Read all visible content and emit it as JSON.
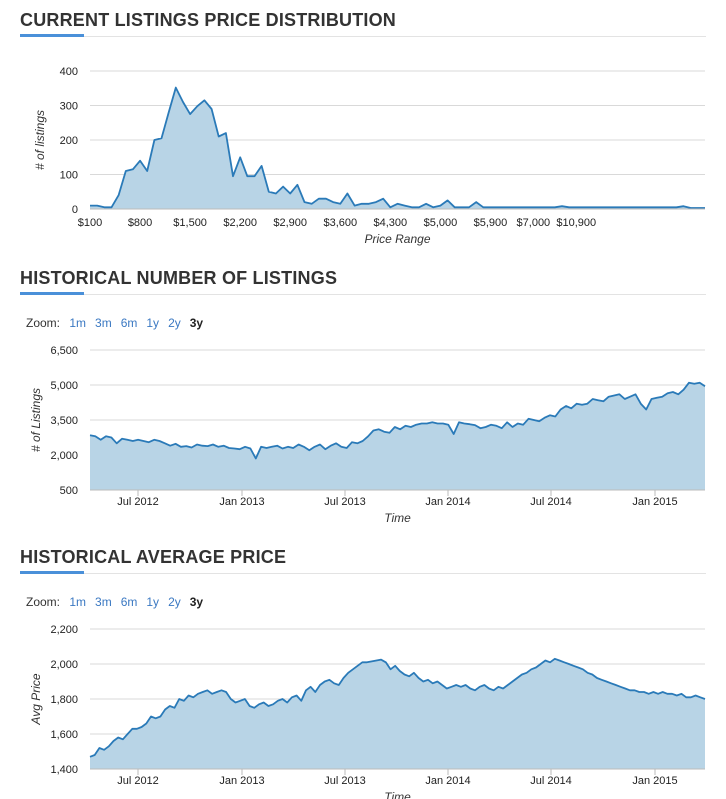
{
  "price_section": {
    "title": "CURRENT LISTINGS PRICE DISTRIBUTION"
  },
  "listings_section": {
    "title": "HISTORICAL NUMBER OF LISTINGS",
    "zoom_label": "Zoom:",
    "zoom_options": [
      "1m",
      "3m",
      "6m",
      "1y",
      "2y",
      "3y"
    ],
    "zoom_active": "3y"
  },
  "avgprice_section": {
    "title": "HISTORICAL AVERAGE PRICE",
    "zoom_label": "Zoom:",
    "zoom_options": [
      "1m",
      "3m",
      "6m",
      "1y",
      "2y",
      "3y"
    ],
    "zoom_active": "3y"
  },
  "colors": {
    "line": "#2a7ab8",
    "fill": "#b8d4e6",
    "accent": "#4a90d9",
    "grid": "#d9d9d9"
  },
  "chart_data": [
    {
      "type": "area",
      "title": "",
      "xlabel": "Price Range",
      "ylabel": "# of listings",
      "ylim": [
        0,
        400
      ],
      "yticks": [
        "0",
        "100",
        "200",
        "300",
        "400"
      ],
      "xtick_labels": [
        "$100",
        "$800",
        "$1,500",
        "$2,200",
        "$2,900",
        "$3,600",
        "$4,300",
        "$5,000",
        "$5,900",
        "$7,000",
        "$10,900"
      ],
      "xtick_index": [
        0,
        7,
        14,
        21,
        28,
        35,
        42,
        49,
        56,
        62,
        68
      ],
      "values": [
        10,
        10,
        5,
        5,
        40,
        110,
        115,
        140,
        110,
        200,
        205,
        280,
        352,
        310,
        275,
        298,
        315,
        290,
        210,
        220,
        95,
        150,
        95,
        95,
        125,
        50,
        45,
        65,
        45,
        70,
        20,
        15,
        30,
        30,
        20,
        15,
        45,
        10,
        15,
        15,
        20,
        30,
        5,
        15,
        10,
        5,
        5,
        15,
        5,
        10,
        25,
        5,
        5,
        5,
        20,
        5,
        5,
        5,
        5,
        5,
        5,
        5,
        5,
        5,
        5,
        5,
        8,
        5,
        5,
        5,
        5,
        5,
        5,
        5,
        5,
        5,
        5,
        5,
        5,
        5,
        5,
        5,
        5,
        8,
        3,
        3,
        3
      ],
      "grid": true
    },
    {
      "type": "area",
      "title": "",
      "xlabel": "Time",
      "ylabel": "# of Listings",
      "ylim": [
        500,
        6500
      ],
      "yticks": [
        "500",
        "2,000",
        "3,500",
        "5,000",
        "6,500"
      ],
      "xtick_labels": [
        "Jul 2012",
        "Jan 2013",
        "Jul 2013",
        "Jan 2014",
        "Jul 2014",
        "Jan 2015"
      ],
      "values": [
        2850,
        2800,
        2650,
        2800,
        2750,
        2500,
        2700,
        2650,
        2600,
        2650,
        2600,
        2550,
        2650,
        2600,
        2500,
        2400,
        2480,
        2350,
        2380,
        2320,
        2450,
        2400,
        2380,
        2450,
        2350,
        2400,
        2300,
        2280,
        2250,
        2350,
        2280,
        1850,
        2350,
        2300,
        2350,
        2400,
        2280,
        2350,
        2300,
        2450,
        2350,
        2200,
        2350,
        2450,
        2250,
        2400,
        2500,
        2350,
        2300,
        2550,
        2500,
        2600,
        2800,
        3050,
        3100,
        3000,
        2950,
        3200,
        3100,
        3250,
        3200,
        3300,
        3350,
        3350,
        3400,
        3350,
        3350,
        3300,
        2900,
        3400,
        3350,
        3320,
        3280,
        3150,
        3200,
        3300,
        3250,
        3150,
        3400,
        3200,
        3350,
        3300,
        3550,
        3500,
        3450,
        3600,
        3700,
        3650,
        3950,
        4100,
        4000,
        4200,
        4150,
        4200,
        4400,
        4350,
        4300,
        4500,
        4550,
        4600,
        4400,
        4500,
        4600,
        4200,
        3950,
        4400,
        4450,
        4500,
        4650,
        4700,
        4600,
        4800,
        5100,
        5050,
        5100,
        4950
      ],
      "grid": true
    },
    {
      "type": "area",
      "title": "",
      "xlabel": "Time",
      "ylabel": "Avg Price",
      "ylim": [
        1400,
        2200
      ],
      "yticks": [
        "1,400",
        "1,600",
        "1,800",
        "2,000",
        "2,200"
      ],
      "xtick_labels": [
        "Jul 2012",
        "Jan 2013",
        "Jul 2013",
        "Jan 2014",
        "Jul 2014",
        "Jan 2015"
      ],
      "values": [
        1470,
        1480,
        1520,
        1510,
        1530,
        1560,
        1580,
        1570,
        1600,
        1630,
        1630,
        1640,
        1660,
        1700,
        1690,
        1700,
        1740,
        1760,
        1750,
        1800,
        1790,
        1820,
        1810,
        1830,
        1840,
        1850,
        1830,
        1840,
        1850,
        1840,
        1800,
        1780,
        1790,
        1800,
        1760,
        1750,
        1770,
        1780,
        1760,
        1770,
        1790,
        1800,
        1780,
        1810,
        1820,
        1790,
        1850,
        1870,
        1840,
        1880,
        1900,
        1910,
        1890,
        1880,
        1920,
        1950,
        1970,
        1990,
        2010,
        2010,
        2015,
        2020,
        2025,
        2010,
        1970,
        1990,
        1960,
        1940,
        1930,
        1950,
        1920,
        1900,
        1910,
        1890,
        1900,
        1880,
        1860,
        1870,
        1880,
        1870,
        1880,
        1860,
        1850,
        1870,
        1880,
        1860,
        1850,
        1870,
        1860,
        1880,
        1900,
        1920,
        1940,
        1950,
        1970,
        1980,
        2000,
        2020,
        2010,
        2030,
        2020,
        2010,
        2000,
        1990,
        1980,
        1970,
        1950,
        1940,
        1920,
        1910,
        1900,
        1890,
        1880,
        1870,
        1860,
        1850,
        1850,
        1840,
        1840,
        1830,
        1840,
        1830,
        1840,
        1830,
        1830,
        1820,
        1830,
        1810,
        1810,
        1820,
        1810,
        1800
      ],
      "grid": true
    }
  ]
}
